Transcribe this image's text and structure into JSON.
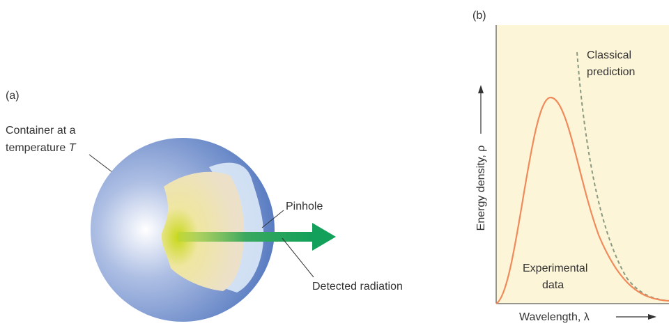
{
  "panel_a": {
    "label": "(a)",
    "container_label_line1": "Container at a",
    "container_label_line2": "temperature",
    "container_label_symbol": "T",
    "pinhole_label": "Pinhole",
    "radiation_label": "Detected radiation"
  },
  "panel_b": {
    "label": "(b)",
    "y_axis_label": "Energy density, ρ",
    "x_axis_label": "Wavelength, λ",
    "classical_label": [
      "Classical",
      "prediction"
    ],
    "experimental_label": [
      "Experimental",
      "data"
    ]
  }
}
